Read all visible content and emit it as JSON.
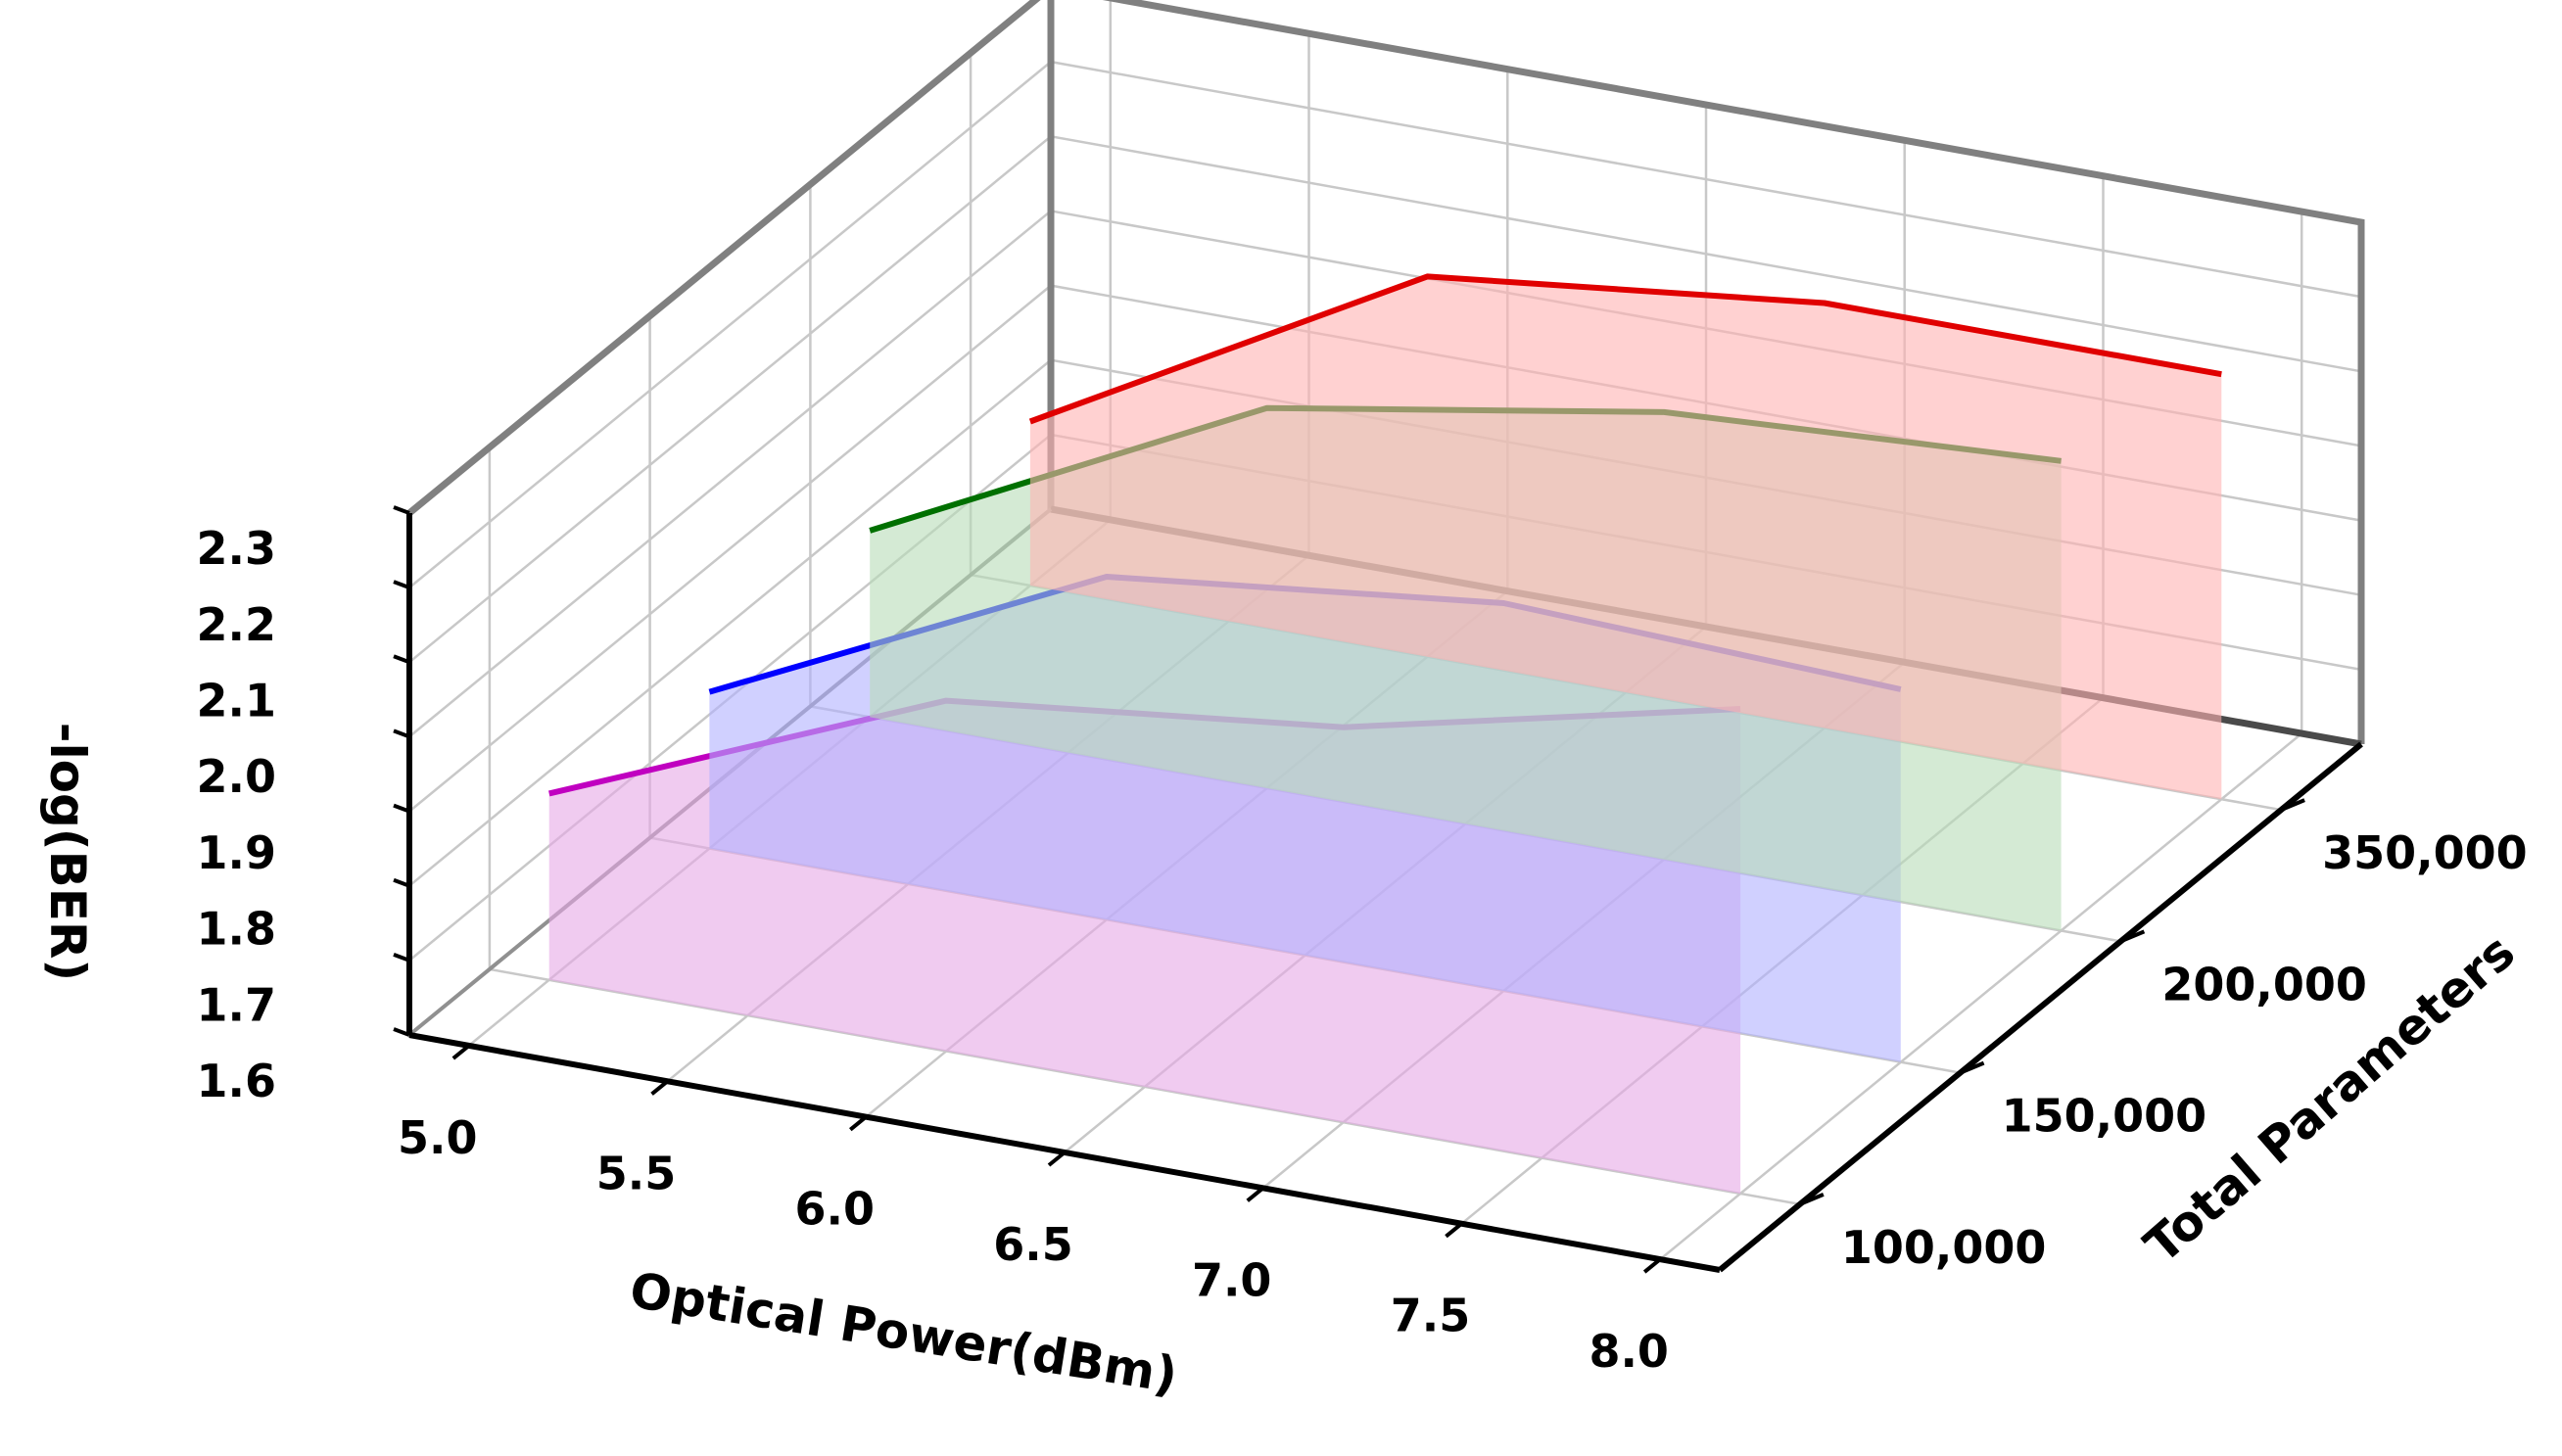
{
  "chart_data": {
    "type": "line",
    "subtype": "3d-line-with-filled-areas",
    "title": "",
    "xlabel": "Optical Power(dBm)",
    "ylabel": "Total Parameters",
    "zlabel": "-log(BER)",
    "x": [
      5.0,
      5.5,
      6.0,
      6.5,
      7.0,
      7.5,
      8.0
    ],
    "x_ticks": [
      "5.0",
      "5.5",
      "6.0",
      "6.5",
      "7.0",
      "7.5",
      "8.0"
    ],
    "y_categories": [
      "100,000",
      "150,000",
      "200,000",
      "350,000"
    ],
    "z_ticks": [
      "1.6",
      "1.7",
      "1.8",
      "1.9",
      "2.0",
      "2.1",
      "2.2",
      "2.3"
    ],
    "zlim": [
      1.6,
      2.3
    ],
    "grid": true,
    "series": [
      {
        "category": "100,000",
        "color": "#c000c0",
        "fill": "#e6a8e6",
        "x": [
          5.0,
          6.0,
          7.0,
          8.0
        ],
        "values": [
          1.85,
          2.07,
          2.13,
          2.25
        ]
      },
      {
        "category": "150,000",
        "color": "#0000ff",
        "fill": "#b0b0ff",
        "x": [
          5.0,
          6.0,
          7.0,
          8.0
        ],
        "values": [
          1.81,
          2.06,
          2.12,
          2.1
        ]
      },
      {
        "category": "200,000",
        "color": "#007000",
        "fill": "#b7dcb7",
        "x": [
          5.0,
          6.0,
          7.0,
          8.0
        ],
        "values": [
          1.85,
          2.11,
          2.2,
          2.23
        ]
      },
      {
        "category": "350,000",
        "color": "#e00000",
        "fill": "#ffb3b3",
        "x": [
          5.0,
          6.0,
          7.0,
          8.0
        ],
        "values": [
          1.82,
          2.11,
          2.17,
          2.17
        ]
      }
    ]
  }
}
